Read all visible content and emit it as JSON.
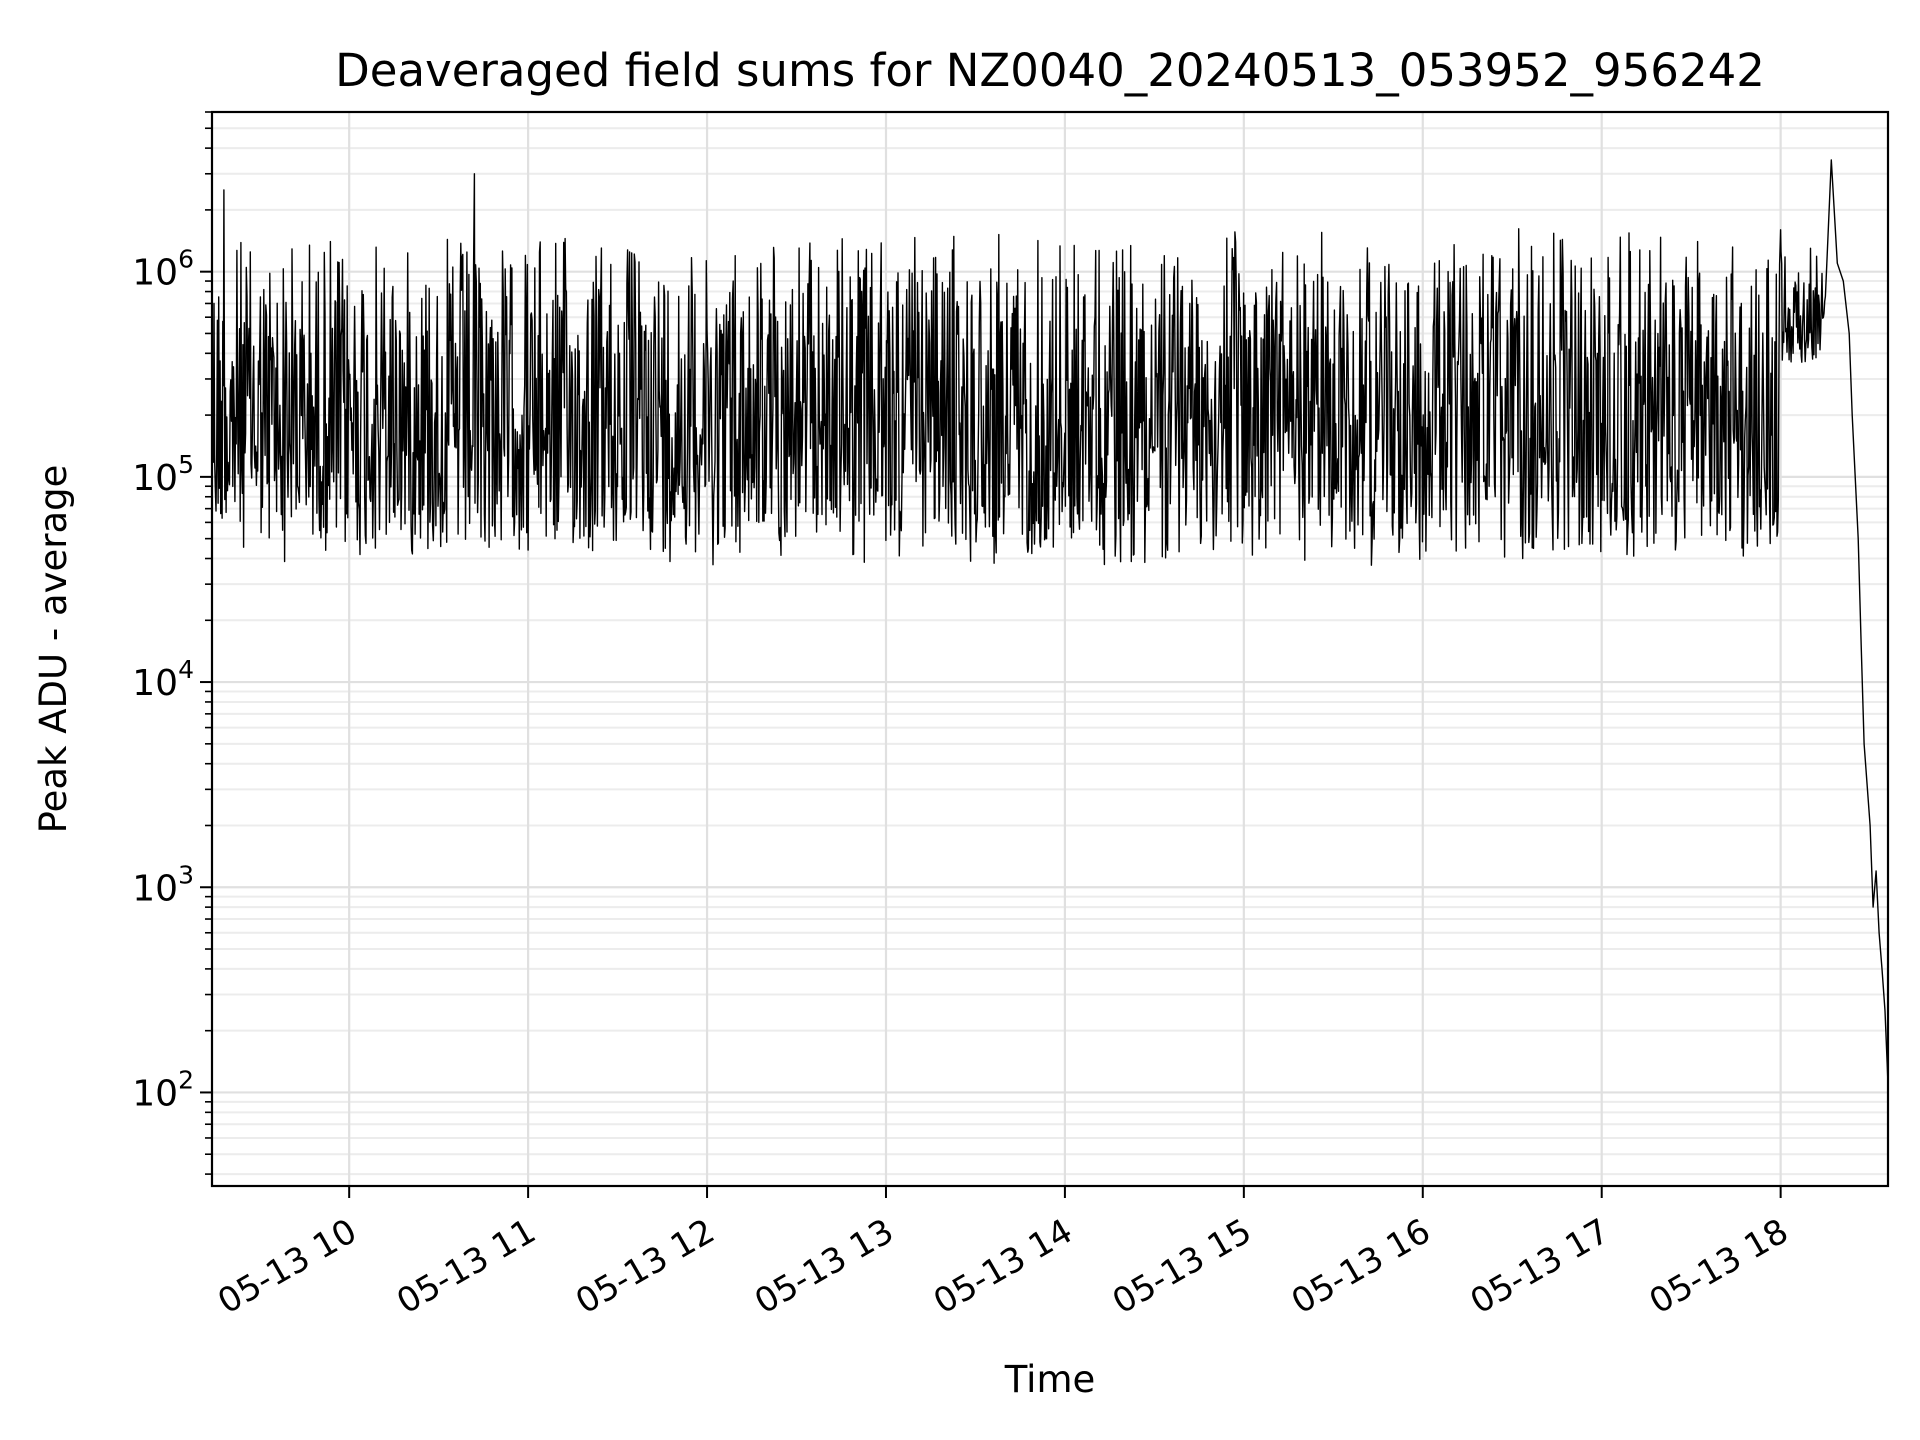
{
  "chart_data": {
    "type": "line",
    "title": "Deaveraged field sums for NZ0040_20240513_053952_956242",
    "xlabel": "Time",
    "ylabel": "Peak ADU - average",
    "yscale": "log",
    "ylim": [
      35,
      6000000
    ],
    "xlim": [
      "2024-05-13 09:14",
      "2024-05-13 18:36"
    ],
    "grid": true,
    "x_ticks": [
      {
        "value": "2024-05-13 10:00",
        "label": "05-13 10"
      },
      {
        "value": "2024-05-13 11:00",
        "label": "05-13 11"
      },
      {
        "value": "2024-05-13 12:00",
        "label": "05-13 12"
      },
      {
        "value": "2024-05-13 13:00",
        "label": "05-13 13"
      },
      {
        "value": "2024-05-13 14:00",
        "label": "05-13 14"
      },
      {
        "value": "2024-05-13 15:00",
        "label": "05-13 15"
      },
      {
        "value": "2024-05-13 16:00",
        "label": "05-13 16"
      },
      {
        "value": "2024-05-13 17:00",
        "label": "05-13 17"
      },
      {
        "value": "2024-05-13 18:00",
        "label": "05-13 18"
      }
    ],
    "y_ticks": [
      {
        "value": 100,
        "base": "10",
        "exp": "2"
      },
      {
        "value": 1000,
        "base": "10",
        "exp": "3"
      },
      {
        "value": 10000,
        "base": "10",
        "exp": "4"
      },
      {
        "value": 100000,
        "base": "10",
        "exp": "5"
      },
      {
        "value": 1000000,
        "base": "10",
        "exp": "6"
      }
    ],
    "series": [
      {
        "color": "#000000",
        "noisy_segment": {
          "x_start": "2024-05-13 09:14",
          "x_end": "2024-05-13 18:15",
          "typical_min": 45000,
          "typical_max": 1500000
        },
        "points": [
          {
            "x": "2024-05-13 09:18",
            "y": 2500000
          },
          {
            "x": "2024-05-13 10:42",
            "y": 3000000
          },
          {
            "x": "2024-05-13 18:00",
            "y": 1600000
          },
          {
            "x": "2024-05-13 18:10",
            "y": 1300000
          },
          {
            "x": "2024-05-13 18:17",
            "y": 3500000
          },
          {
            "x": "2024-05-13 18:19",
            "y": 1100000
          },
          {
            "x": "2024-05-13 18:21",
            "y": 900000
          },
          {
            "x": "2024-05-13 18:23",
            "y": 500000
          },
          {
            "x": "2024-05-13 18:24",
            "y": 200000
          },
          {
            "x": "2024-05-13 18:26",
            "y": 50000
          },
          {
            "x": "2024-05-13 18:27",
            "y": 15000
          },
          {
            "x": "2024-05-13 18:28",
            "y": 5000
          },
          {
            "x": "2024-05-13 18:30",
            "y": 2000
          },
          {
            "x": "2024-05-13 18:31",
            "y": 800
          },
          {
            "x": "2024-05-13 18:32",
            "y": 1200
          },
          {
            "x": "2024-05-13 18:33",
            "y": 600
          },
          {
            "x": "2024-05-13 18:34",
            "y": 400
          },
          {
            "x": "2024-05-13 18:35",
            "y": 250
          },
          {
            "x": "2024-05-13 18:36",
            "y": 110
          }
        ]
      }
    ]
  }
}
